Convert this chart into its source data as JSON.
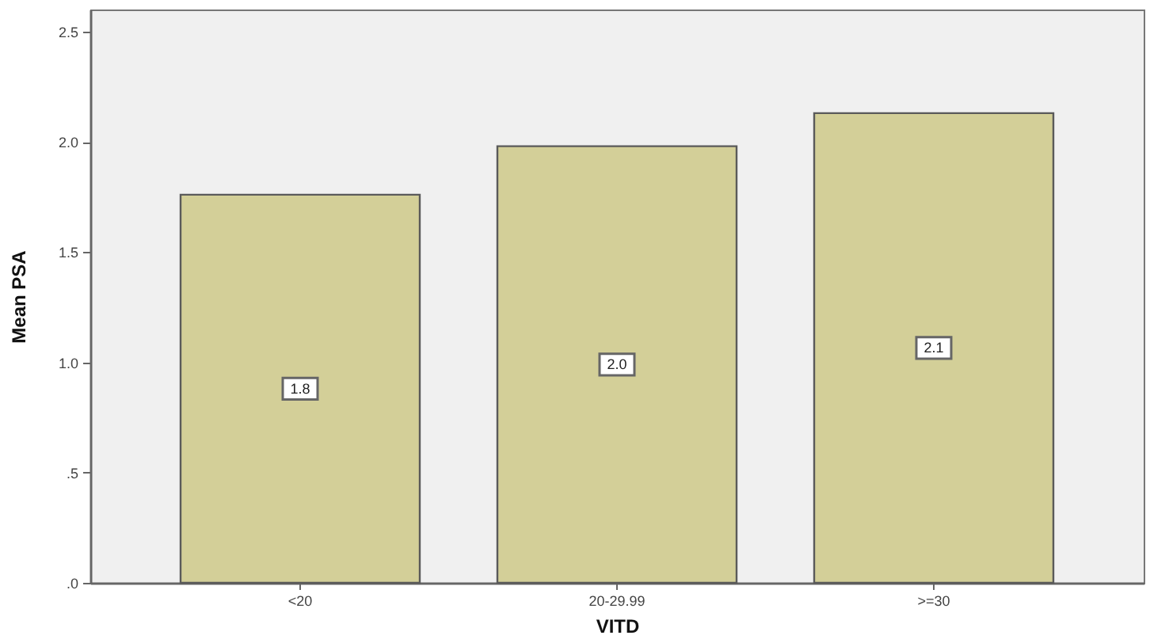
{
  "chart_data": {
    "type": "bar",
    "xlabel": "VITD",
    "ylabel": "Mean PSA",
    "categories": [
      "<20",
      "20-29.99",
      ">=30"
    ],
    "values": [
      1.76,
      1.98,
      2.13
    ],
    "value_labels": [
      "1.8",
      "2.0",
      "2.1"
    ],
    "color": "#d3cf98",
    "ylim": [
      0,
      2.6
    ],
    "yticks": [
      {
        "value": 0,
        "label": ".0"
      },
      {
        "value": 0.5,
        "label": ".5"
      },
      {
        "value": 1,
        "label": "1.0"
      },
      {
        "value": 1.5,
        "label": "1.5"
      },
      {
        "value": 2,
        "label": "2.0"
      },
      {
        "value": 2.5,
        "label": "2.5"
      }
    ]
  }
}
